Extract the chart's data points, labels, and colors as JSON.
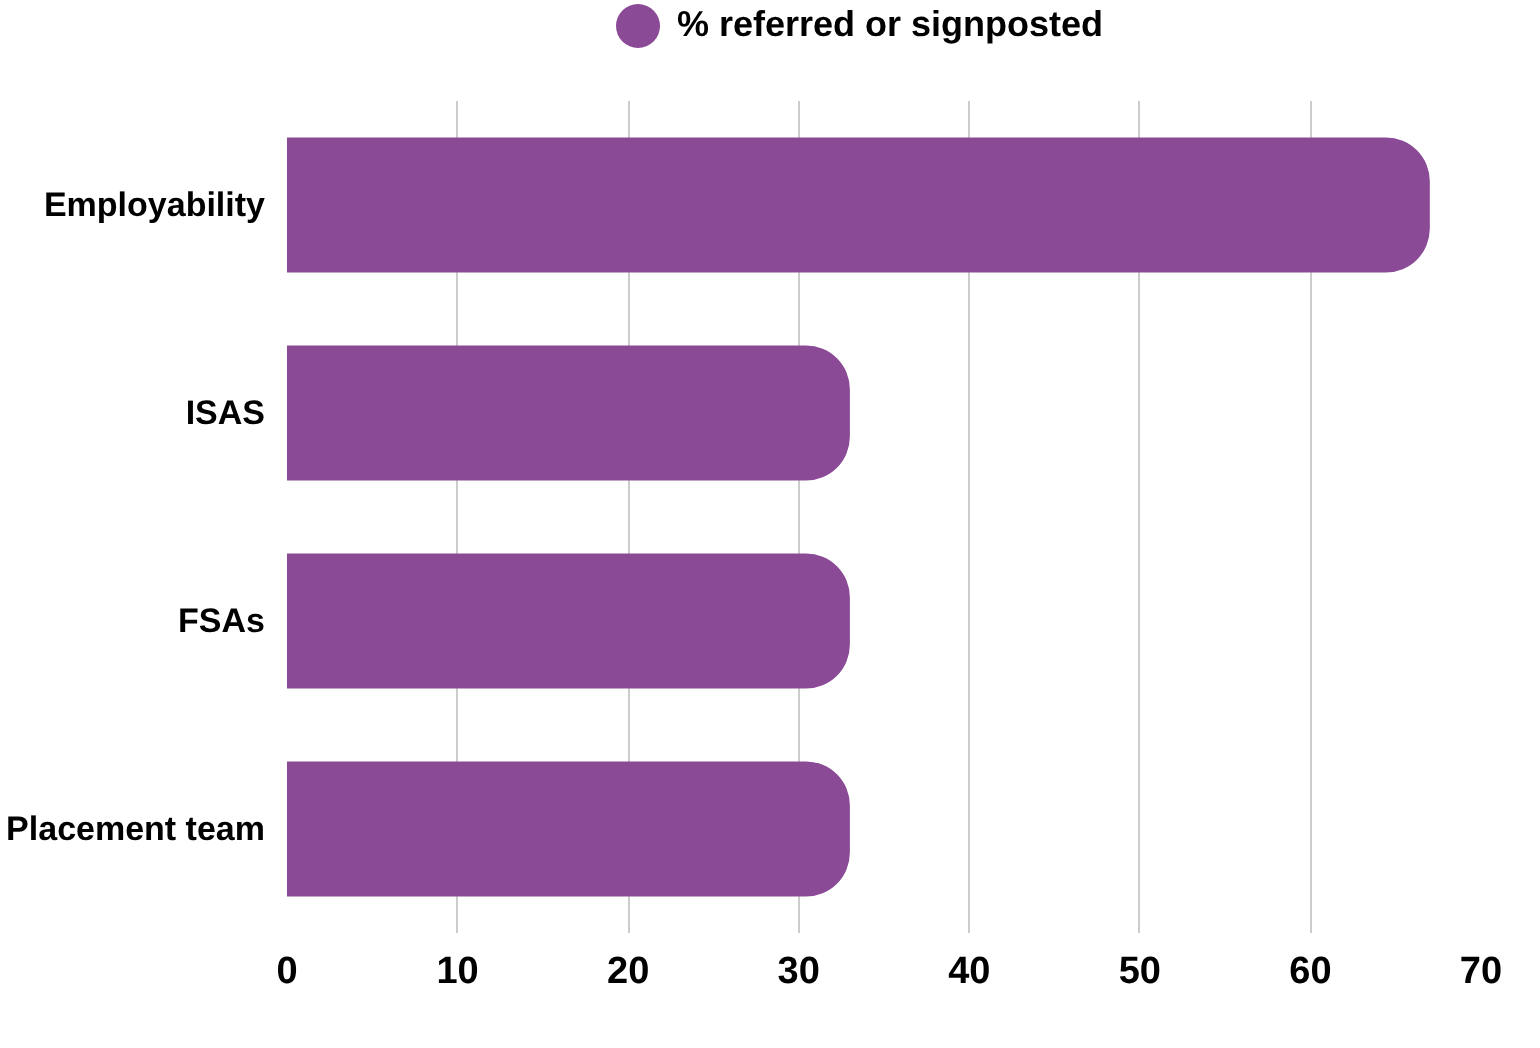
{
  "chart_data": {
    "type": "bar",
    "orientation": "horizontal",
    "categories": [
      "Employability",
      "ISAS",
      "FSAs",
      "Placement team"
    ],
    "series": [
      {
        "name": "% referred or signposted",
        "color": "#8b4a96",
        "values": [
          67,
          33,
          33,
          33
        ]
      }
    ],
    "xlim": [
      0,
      70
    ],
    "xticks": [
      0,
      10,
      20,
      30,
      40,
      50,
      60,
      70
    ],
    "grid": "x",
    "legend": "top"
  }
}
